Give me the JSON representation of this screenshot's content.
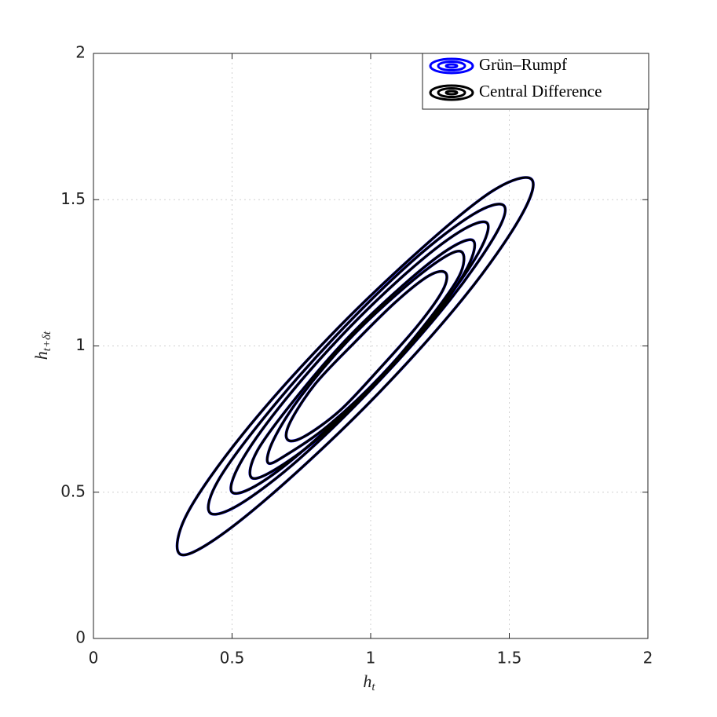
{
  "chart_data": {
    "type": "contour",
    "xlabel": {
      "text": "h",
      "subscript": "t"
    },
    "ylabel": {
      "text": "h",
      "subscript": "t+δt"
    },
    "xlim": [
      0,
      2
    ],
    "ylim": [
      0,
      2
    ],
    "xticks": [
      0,
      0.5,
      1,
      1.5,
      2
    ],
    "yticks": [
      0,
      0.5,
      1,
      1.5,
      2
    ],
    "grid": true,
    "legend": "upper right",
    "series": [
      {
        "name": "Grün–Rumpf",
        "color": "#0000ff",
        "contours": [
          {
            "x": [
              1.27,
              1.21,
              1.09,
              0.94,
              0.8,
              0.71,
              0.7,
              0.76,
              0.89,
              1.03,
              1.17,
              1.26
            ],
            "y": [
              1.25,
              1.24,
              1.15,
              1.01,
              0.87,
              0.74,
              0.68,
              0.69,
              0.78,
              0.92,
              1.07,
              1.19
            ]
          },
          {
            "x": [
              1.33,
              1.26,
              1.11,
              0.92,
              0.75,
              0.65,
              0.63,
              0.7,
              0.85,
              1.04,
              1.21,
              1.32
            ],
            "y": [
              1.32,
              1.3,
              1.19,
              1.02,
              0.83,
              0.68,
              0.6,
              0.63,
              0.73,
              0.9,
              1.09,
              1.24
            ]
          },
          {
            "x": [
              1.37,
              1.28,
              1.12,
              0.91,
              0.72,
              0.59,
              0.57,
              0.66,
              0.83,
              1.03,
              1.23,
              1.35
            ],
            "y": [
              1.36,
              1.33,
              1.21,
              1.02,
              0.81,
              0.64,
              0.55,
              0.58,
              0.7,
              0.89,
              1.1,
              1.27
            ]
          },
          {
            "x": [
              1.42,
              1.32,
              1.13,
              0.89,
              0.67,
              0.53,
              0.5,
              0.6,
              0.79,
              1.03,
              1.25,
              1.39
            ],
            "y": [
              1.42,
              1.39,
              1.25,
              1.03,
              0.79,
              0.6,
              0.5,
              0.53,
              0.67,
              0.89,
              1.13,
              1.32
            ]
          },
          {
            "x": [
              1.48,
              1.37,
              1.15,
              0.87,
              0.62,
              0.45,
              0.42,
              0.53,
              0.75,
              1.03,
              1.28,
              1.45
            ],
            "y": [
              1.48,
              1.45,
              1.29,
              1.03,
              0.76,
              0.54,
              0.43,
              0.46,
              0.62,
              0.88,
              1.15,
              1.38
            ]
          },
          {
            "x": [
              1.58,
              1.44,
              1.18,
              0.85,
              0.54,
              0.34,
              0.31,
              0.44,
              0.7,
              1.03,
              1.34,
              1.54
            ],
            "y": [
              1.57,
              1.53,
              1.33,
              1.03,
              0.7,
              0.43,
              0.29,
              0.34,
              0.54,
              0.84,
              1.17,
              1.44
            ]
          }
        ]
      },
      {
        "name": "Central Difference",
        "color": "#000000",
        "contours": [
          {
            "x": [
              1.27,
              1.21,
              1.09,
              0.94,
              0.8,
              0.71,
              0.7,
              0.76,
              0.89,
              1.03,
              1.17,
              1.26
            ],
            "y": [
              1.25,
              1.24,
              1.15,
              1.01,
              0.87,
              0.74,
              0.68,
              0.69,
              0.78,
              0.92,
              1.07,
              1.19
            ]
          },
          {
            "x": [
              1.33,
              1.26,
              1.11,
              0.92,
              0.75,
              0.65,
              0.63,
              0.7,
              0.85,
              1.04,
              1.21,
              1.32
            ],
            "y": [
              1.32,
              1.3,
              1.19,
              1.02,
              0.83,
              0.68,
              0.6,
              0.63,
              0.73,
              0.9,
              1.09,
              1.24
            ]
          },
          {
            "x": [
              1.37,
              1.28,
              1.12,
              0.91,
              0.72,
              0.59,
              0.57,
              0.66,
              0.83,
              1.03,
              1.23,
              1.35
            ],
            "y": [
              1.36,
              1.33,
              1.21,
              1.02,
              0.81,
              0.64,
              0.55,
              0.58,
              0.7,
              0.89,
              1.1,
              1.27
            ]
          },
          {
            "x": [
              1.42,
              1.32,
              1.13,
              0.89,
              0.67,
              0.53,
              0.5,
              0.6,
              0.79,
              1.03,
              1.25,
              1.39
            ],
            "y": [
              1.42,
              1.39,
              1.25,
              1.03,
              0.79,
              0.6,
              0.5,
              0.53,
              0.67,
              0.89,
              1.13,
              1.32
            ]
          },
          {
            "x": [
              1.48,
              1.37,
              1.15,
              0.87,
              0.62,
              0.45,
              0.42,
              0.53,
              0.75,
              1.03,
              1.28,
              1.45
            ],
            "y": [
              1.48,
              1.45,
              1.29,
              1.03,
              0.76,
              0.54,
              0.43,
              0.46,
              0.62,
              0.88,
              1.15,
              1.38
            ]
          },
          {
            "x": [
              1.58,
              1.44,
              1.18,
              0.85,
              0.54,
              0.34,
              0.31,
              0.44,
              0.7,
              1.03,
              1.34,
              1.54
            ],
            "y": [
              1.57,
              1.53,
              1.33,
              1.03,
              0.7,
              0.43,
              0.29,
              0.34,
              0.54,
              0.84,
              1.17,
              1.44
            ]
          }
        ]
      }
    ]
  }
}
